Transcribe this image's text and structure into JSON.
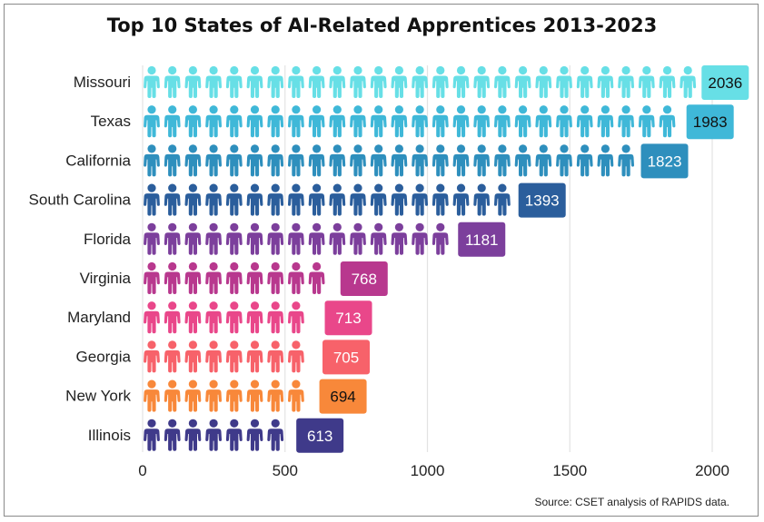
{
  "chart_data": {
    "type": "bar",
    "title": "Top 10 States of AI-Related Apprentices 2013-2023",
    "xlabel": "",
    "ylabel": "",
    "categories": [
      "Missouri",
      "Texas",
      "California",
      "South Carolina",
      "Florida",
      "Virginia",
      "Maryland",
      "Georgia",
      "New York",
      "Illinois"
    ],
    "values": [
      2036,
      1983,
      1823,
      1393,
      1181,
      768,
      713,
      705,
      694,
      613
    ],
    "value_labels": [
      "2036",
      "1983",
      "1823",
      "1393",
      "1181",
      "768",
      "713",
      "705",
      "694",
      "613"
    ],
    "xlim": [
      0,
      2000
    ],
    "x_ticks": [
      0,
      500,
      1000,
      1500,
      2000
    ],
    "x_tick_labels": [
      "0",
      "500",
      "1000",
      "1500",
      "2000"
    ],
    "grid": true,
    "mark_style": "pictogram-person-icon",
    "colors": [
      "#67dfe6",
      "#3fb8d8",
      "#2e8fbd",
      "#2b5e9c",
      "#7c3f9c",
      "#b8388e",
      "#e9478a",
      "#f7626a",
      "#f8883a",
      "#3f3a8a"
    ],
    "label_text_colors": [
      "#111111",
      "#111111",
      "#ffffff",
      "#ffffff",
      "#ffffff",
      "#ffffff",
      "#ffffff",
      "#ffffff",
      "#111111",
      "#ffffff"
    ]
  },
  "source_note": "Source: CSET analysis of RAPIDS data."
}
